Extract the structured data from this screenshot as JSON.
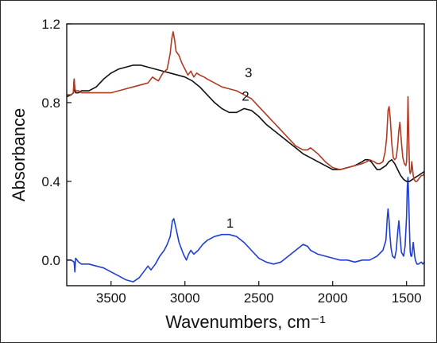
{
  "chart_data": {
    "type": "line",
    "title": "",
    "xlabel": "Wavenumbers, cm⁻¹",
    "ylabel": "Absorbance",
    "xlim": [
      3800,
      1380
    ],
    "ylim": [
      -0.13,
      1.2
    ],
    "x_ticks": [
      3500,
      3000,
      2500,
      2000,
      1500
    ],
    "x_tick_labels": [
      "3500",
      "3000",
      "2500",
      "2000",
      "1500"
    ],
    "y_ticks": [
      0.0,
      0.4,
      0.8,
      1.2
    ],
    "y_tick_labels": [
      "0.0",
      "0.4",
      "0.8",
      "1.2"
    ],
    "grid": false,
    "x_reversed": true,
    "series": [
      {
        "name": "1",
        "color": "#1f3fd1",
        "x": [
          3800,
          3770,
          3750,
          3745,
          3740,
          3720,
          3700,
          3650,
          3600,
          3550,
          3500,
          3450,
          3400,
          3350,
          3310,
          3280,
          3250,
          3230,
          3200,
          3170,
          3140,
          3120,
          3100,
          3085,
          3075,
          3060,
          3040,
          3010,
          2990,
          2975,
          2960,
          2940,
          2910,
          2880,
          2850,
          2800,
          2750,
          2700,
          2650,
          2600,
          2550,
          2500,
          2450,
          2400,
          2350,
          2300,
          2250,
          2200,
          2170,
          2150,
          2100,
          2050,
          2000,
          1950,
          1900,
          1850,
          1800,
          1750,
          1700,
          1660,
          1640,
          1630,
          1625,
          1618,
          1612,
          1605,
          1595,
          1580,
          1570,
          1560,
          1552,
          1545,
          1535,
          1520,
          1510,
          1500,
          1495,
          1490,
          1485,
          1480,
          1475,
          1470,
          1465,
          1455,
          1445,
          1440,
          1430,
          1420,
          1400,
          1390,
          1380
        ],
        "y": [
          0.0,
          0.0,
          -0.01,
          -0.06,
          0.01,
          -0.01,
          -0.02,
          -0.02,
          -0.03,
          -0.04,
          -0.06,
          -0.08,
          -0.1,
          -0.11,
          -0.09,
          -0.06,
          -0.03,
          -0.05,
          -0.02,
          0.02,
          0.05,
          0.08,
          0.12,
          0.2,
          0.21,
          0.16,
          0.09,
          0.03,
          0.0,
          0.03,
          0.05,
          0.03,
          0.05,
          0.08,
          0.1,
          0.12,
          0.13,
          0.13,
          0.12,
          0.09,
          0.05,
          0.01,
          -0.01,
          -0.02,
          -0.01,
          0.02,
          0.05,
          0.08,
          0.07,
          0.05,
          0.03,
          0.02,
          0.01,
          0.0,
          0.0,
          -0.01,
          0.0,
          0.0,
          0.02,
          0.05,
          0.1,
          0.22,
          0.26,
          0.2,
          0.12,
          0.06,
          0.02,
          0.01,
          0.05,
          0.14,
          0.2,
          0.13,
          0.04,
          0.02,
          0.07,
          0.22,
          0.37,
          0.42,
          0.3,
          0.15,
          0.04,
          0.02,
          0.02,
          0.09,
          0.02,
          0.0,
          -0.02,
          -0.02,
          -0.01,
          -0.02,
          -0.01
        ]
      },
      {
        "name": "2",
        "color": "#111111",
        "x": [
          3800,
          3770,
          3755,
          3750,
          3745,
          3740,
          3720,
          3700,
          3650,
          3600,
          3550,
          3500,
          3450,
          3400,
          3350,
          3300,
          3250,
          3200,
          3150,
          3100,
          3050,
          3000,
          2950,
          2900,
          2850,
          2800,
          2750,
          2700,
          2650,
          2600,
          2550,
          2500,
          2450,
          2400,
          2350,
          2300,
          2250,
          2200,
          2150,
          2100,
          2050,
          2000,
          1950,
          1900,
          1850,
          1800,
          1780,
          1760,
          1740,
          1720,
          1700,
          1680,
          1660,
          1640,
          1620,
          1600,
          1580,
          1560,
          1540,
          1520,
          1500,
          1480,
          1460,
          1440,
          1420,
          1400,
          1380
        ],
        "y": [
          0.83,
          0.84,
          0.85,
          0.92,
          0.86,
          0.85,
          0.85,
          0.86,
          0.86,
          0.88,
          0.92,
          0.95,
          0.97,
          0.98,
          0.99,
          0.99,
          0.98,
          0.97,
          0.96,
          0.95,
          0.94,
          0.93,
          0.91,
          0.88,
          0.84,
          0.8,
          0.77,
          0.75,
          0.75,
          0.77,
          0.76,
          0.73,
          0.69,
          0.66,
          0.63,
          0.6,
          0.57,
          0.54,
          0.52,
          0.5,
          0.48,
          0.46,
          0.46,
          0.47,
          0.48,
          0.5,
          0.51,
          0.51,
          0.5,
          0.48,
          0.46,
          0.46,
          0.47,
          0.48,
          0.5,
          0.51,
          0.49,
          0.46,
          0.43,
          0.41,
          0.4,
          0.4,
          0.41,
          0.42,
          0.43,
          0.44,
          0.45
        ]
      },
      {
        "name": "3",
        "color": "#b13a22",
        "x": [
          3800,
          3770,
          3755,
          3750,
          3745,
          3740,
          3720,
          3700,
          3650,
          3600,
          3550,
          3500,
          3450,
          3400,
          3350,
          3300,
          3250,
          3220,
          3200,
          3180,
          3150,
          3120,
          3100,
          3090,
          3080,
          3070,
          3060,
          3040,
          3020,
          3000,
          2980,
          2960,
          2940,
          2920,
          2900,
          2870,
          2850,
          2800,
          2750,
          2700,
          2650,
          2600,
          2550,
          2500,
          2450,
          2400,
          2350,
          2300,
          2250,
          2200,
          2170,
          2150,
          2100,
          2050,
          2000,
          1950,
          1900,
          1850,
          1800,
          1770,
          1750,
          1720,
          1700,
          1680,
          1660,
          1645,
          1635,
          1625,
          1618,
          1610,
          1600,
          1590,
          1580,
          1570,
          1560,
          1552,
          1545,
          1535,
          1525,
          1515,
          1505,
          1500,
          1495,
          1490,
          1485,
          1480,
          1475,
          1470,
          1465,
          1460,
          1455,
          1450,
          1440,
          1430,
          1420,
          1410,
          1400,
          1390,
          1380
        ],
        "y": [
          0.84,
          0.84,
          0.85,
          0.92,
          0.87,
          0.86,
          0.86,
          0.85,
          0.85,
          0.85,
          0.85,
          0.85,
          0.86,
          0.87,
          0.88,
          0.89,
          0.9,
          0.93,
          0.92,
          0.91,
          0.95,
          0.97,
          1.05,
          1.12,
          1.16,
          1.12,
          1.06,
          1.04,
          1.0,
          0.97,
          0.94,
          0.96,
          0.93,
          0.95,
          0.94,
          0.93,
          0.92,
          0.9,
          0.88,
          0.87,
          0.86,
          0.84,
          0.82,
          0.78,
          0.74,
          0.7,
          0.66,
          0.62,
          0.58,
          0.56,
          0.56,
          0.57,
          0.54,
          0.5,
          0.47,
          0.46,
          0.47,
          0.48,
          0.49,
          0.5,
          0.51,
          0.5,
          0.49,
          0.49,
          0.5,
          0.55,
          0.62,
          0.76,
          0.78,
          0.72,
          0.59,
          0.52,
          0.51,
          0.52,
          0.58,
          0.66,
          0.7,
          0.6,
          0.52,
          0.49,
          0.48,
          0.5,
          0.62,
          0.83,
          0.62,
          0.46,
          0.44,
          0.45,
          0.5,
          0.47,
          0.43,
          0.41,
          0.4,
          0.4,
          0.41,
          0.42,
          0.43,
          0.43,
          0.44
        ]
      }
    ]
  }
}
